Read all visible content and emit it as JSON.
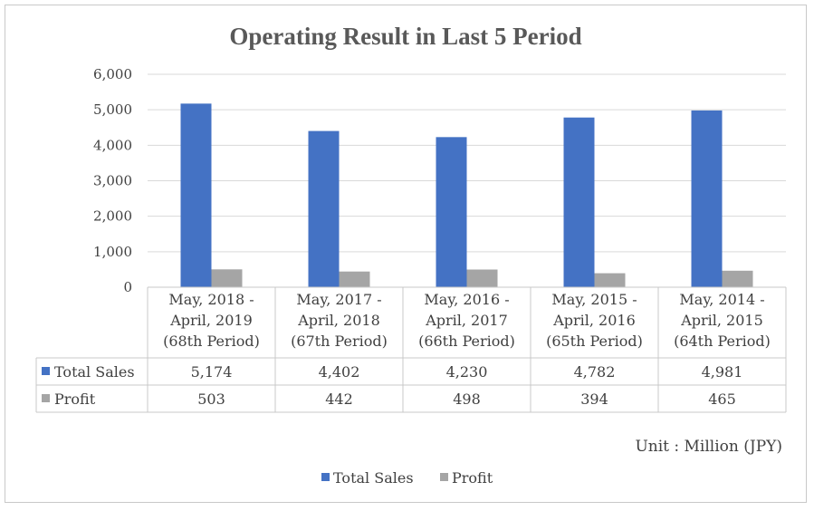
{
  "chart_data": {
    "type": "bar",
    "title": "Operating Result in Last 5 Period",
    "categories": [
      [
        "May, 2018 -",
        "April, 2019",
        "(68th Period)"
      ],
      [
        "May, 2017 -",
        "April, 2018",
        "(67th Period)"
      ],
      [
        "May, 2016 -",
        "April, 2017",
        "(66th Period)"
      ],
      [
        "May, 2015 -",
        "April, 2016",
        "(65th Period)"
      ],
      [
        "May, 2014 -",
        "April, 2015",
        "(64th Period)"
      ]
    ],
    "series": [
      {
        "name": "Total Sales",
        "color": "#4472c4",
        "values": [
          5174,
          4402,
          4230,
          4782,
          4981
        ],
        "labels": [
          "5,174",
          "4,402",
          "4,230",
          "4,782",
          "4,981"
        ]
      },
      {
        "name": "Profit",
        "color": "#a5a5a5",
        "values": [
          503,
          442,
          498,
          394,
          465
        ],
        "labels": [
          "503",
          "442",
          "498",
          "394",
          "465"
        ]
      }
    ],
    "ylim": [
      0,
      6000
    ],
    "yticks": [
      0,
      1000,
      2000,
      3000,
      4000,
      5000,
      6000
    ],
    "ytick_labels": [
      "0",
      "1,000",
      "2,000",
      "3,000",
      "4,000",
      "5,000",
      "6,000"
    ],
    "grid": true,
    "legend": "bottom",
    "data_table": true,
    "unit_note": "Unit : Million (JPY)"
  }
}
